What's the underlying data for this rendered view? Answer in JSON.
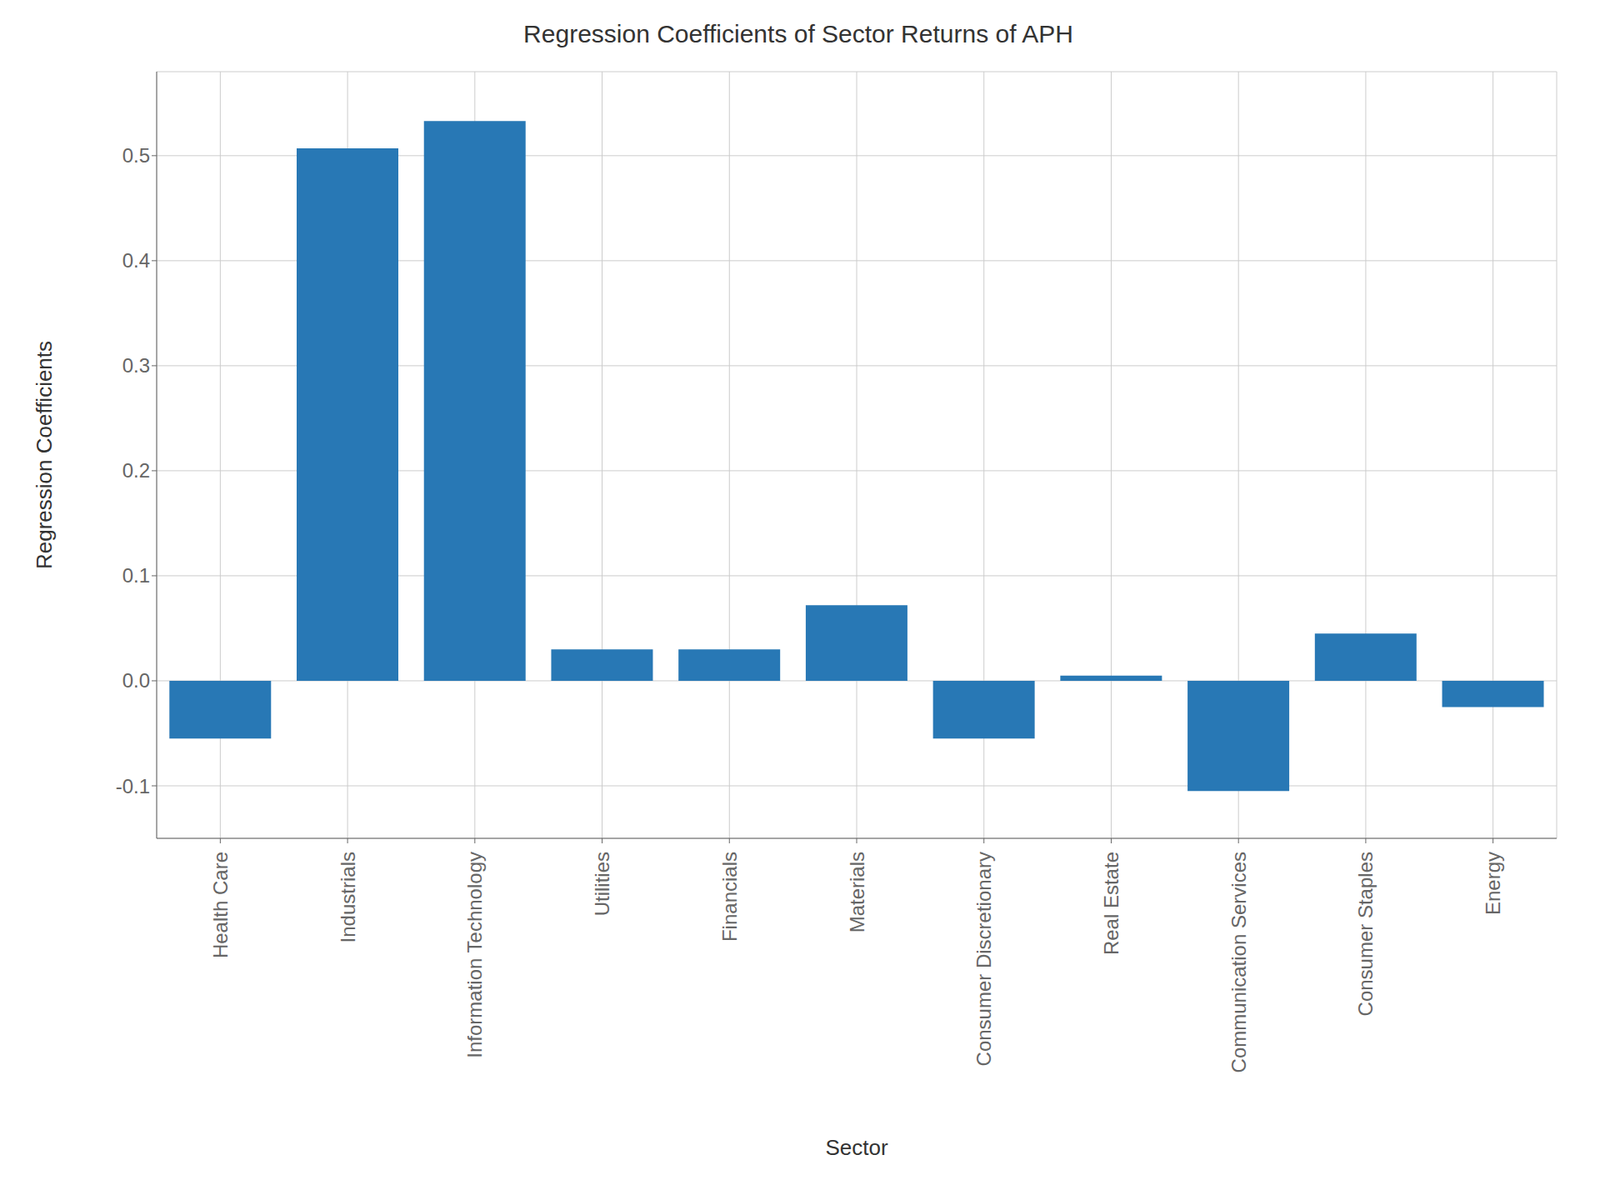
{
  "chart_data": {
    "type": "bar",
    "title": "Regression Coefficients of Sector Returns of APH",
    "xlabel": "Sector",
    "ylabel": "Regression Coefficients",
    "categories": [
      "Health Care",
      "Industrials",
      "Information Technology",
      "Utilities",
      "Financials",
      "Materials",
      "Consumer Discretionary",
      "Real Estate",
      "Communication Services",
      "Consumer Staples",
      "Energy"
    ],
    "values": [
      -0.055,
      0.507,
      0.533,
      0.03,
      0.03,
      0.072,
      -0.055,
      0.005,
      -0.105,
      0.045,
      -0.025
    ],
    "color": "#2878b5",
    "ylim": [
      -0.15,
      0.58
    ],
    "yticks": [
      -0.1,
      {
        "value": 0,
        "label": "0.0"
      },
      0.1,
      0.2,
      0.3,
      0.4,
      0.5
    ],
    "grid": true
  }
}
